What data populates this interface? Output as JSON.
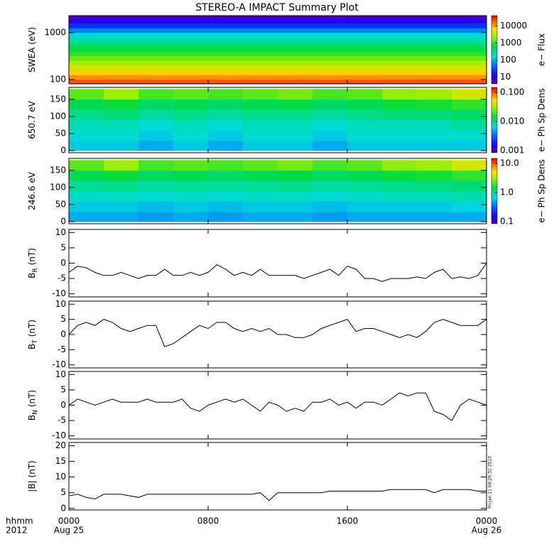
{
  "title": "STEREO-A IMPACT Summary Plot",
  "timestamp": "Fri Jan 11 08:26:32 2013",
  "chart_data": [
    {
      "type": "heatmap",
      "y_label": "SWEA (eV)",
      "colorbar_label": "e− Flux",
      "colormap": "rainbow",
      "ylog": true,
      "ylim": [
        81,
        2300
      ],
      "yticks": [
        100,
        1000
      ],
      "x_edges": [
        0,
        24
      ],
      "y_edges": [
        81,
        100,
        125,
        160,
        200,
        250,
        320,
        400,
        500,
        630,
        800,
        1000,
        1250,
        1600,
        2000,
        2300
      ],
      "values": [
        [
          20000
        ],
        [
          12000
        ],
        [
          7000
        ],
        [
          4000
        ],
        [
          2500
        ],
        [
          1500
        ],
        [
          900
        ],
        [
          600
        ],
        [
          400
        ],
        [
          250
        ],
        [
          150
        ],
        [
          60
        ],
        [
          20
        ],
        [
          10
        ],
        [
          5
        ]
      ],
      "zlim": [
        4,
        40000
      ],
      "zlog": true,
      "zticks": [
        10,
        100,
        1000,
        10000
      ]
    },
    {
      "type": "heatmap",
      "y_label": "650.7 eV",
      "colorbar_label": "e− Ph Sp Dens",
      "colormap": "rainbow",
      "ylim": [
        -6,
        185
      ],
      "yticks": [
        0,
        50,
        100,
        150
      ],
      "x_edges": [
        0,
        2,
        4,
        6,
        8,
        10,
        12,
        14,
        16,
        18,
        20,
        22,
        24
      ],
      "y_edges": [
        0,
        30,
        60,
        90,
        120,
        150,
        180
      ],
      "values": [
        [
          0.006,
          0.006,
          0.005,
          0.006,
          0.005,
          0.006,
          0.006,
          0.005,
          0.006,
          0.006,
          0.006,
          0.006
        ],
        [
          0.007,
          0.007,
          0.006,
          0.007,
          0.006,
          0.007,
          0.007,
          0.006,
          0.007,
          0.007,
          0.007,
          0.007
        ],
        [
          0.008,
          0.008,
          0.007,
          0.008,
          0.007,
          0.008,
          0.008,
          0.007,
          0.008,
          0.008,
          0.008,
          0.009
        ],
        [
          0.01,
          0.011,
          0.009,
          0.01,
          0.009,
          0.01,
          0.01,
          0.009,
          0.01,
          0.011,
          0.011,
          0.012
        ],
        [
          0.013,
          0.015,
          0.012,
          0.013,
          0.012,
          0.013,
          0.014,
          0.012,
          0.013,
          0.015,
          0.016,
          0.018
        ],
        [
          0.022,
          0.03,
          0.02,
          0.022,
          0.02,
          0.022,
          0.025,
          0.02,
          0.022,
          0.028,
          0.03,
          0.04
        ]
      ],
      "zlim": [
        0.00085,
        0.147
      ],
      "zlog": true,
      "zticks": [
        {
          "value": 0.001,
          "label": "0.001"
        },
        {
          "value": 0.01,
          "label": "0.010"
        },
        {
          "value": 0.1,
          "label": "0.100"
        }
      ]
    },
    {
      "type": "heatmap",
      "y_label": "246.6 eV",
      "colorbar_label": "e− Ph Sp Dens",
      "colormap": "rainbow",
      "ylim": [
        -6,
        185
      ],
      "yticks": [
        0,
        50,
        100,
        150
      ],
      "x_edges": [
        0,
        2,
        4,
        6,
        8,
        10,
        12,
        14,
        16,
        18,
        20,
        22,
        24
      ],
      "y_edges": [
        0,
        30,
        60,
        90,
        120,
        150,
        180
      ],
      "values": [
        [
          0.5,
          0.5,
          0.45,
          0.5,
          0.45,
          0.5,
          0.5,
          0.45,
          0.5,
          0.5,
          0.5,
          0.5
        ],
        [
          0.6,
          0.6,
          0.55,
          0.6,
          0.55,
          0.6,
          0.6,
          0.55,
          0.6,
          0.6,
          0.6,
          0.65
        ],
        [
          0.75,
          0.75,
          0.7,
          0.75,
          0.7,
          0.75,
          0.75,
          0.7,
          0.75,
          0.8,
          0.8,
          0.85
        ],
        [
          0.95,
          1.0,
          0.9,
          0.95,
          0.9,
          0.95,
          1.0,
          0.9,
          0.95,
          1.0,
          1.05,
          1.1
        ],
        [
          1.3,
          1.5,
          1.2,
          1.3,
          1.2,
          1.3,
          1.4,
          1.2,
          1.3,
          1.5,
          1.6,
          1.8
        ],
        [
          2.2,
          3.0,
          2.0,
          2.2,
          2.0,
          2.2,
          2.5,
          2.0,
          2.2,
          2.8,
          3.0,
          4.0
        ]
      ],
      "zlim": [
        0.085,
        14.7
      ],
      "zlog": true,
      "zticks": [
        0.1,
        {
          "value": 1,
          "label": "1.0"
        },
        {
          "value": 10,
          "label": "10.0"
        }
      ]
    },
    {
      "type": "line",
      "y_label": "B",
      "y_label_sub": "R",
      "y_label_unit": "(nT)",
      "color": "#000000",
      "ylim": [
        -11,
        11
      ],
      "yticks": [
        -10,
        -5,
        0,
        5,
        10
      ],
      "xlim": [
        0,
        24
      ],
      "x": [
        0,
        0.5,
        1,
        1.5,
        2,
        2.5,
        3,
        3.5,
        4,
        4.5,
        5,
        5.5,
        6,
        6.5,
        7,
        7.5,
        8,
        8.5,
        9,
        9.5,
        10,
        10.5,
        11,
        11.5,
        12,
        12.5,
        13,
        13.5,
        14,
        14.5,
        15,
        15.5,
        16,
        16.5,
        17,
        17.5,
        18,
        18.5,
        19,
        19.5,
        20,
        20.5,
        21,
        21.5,
        22,
        22.5,
        23,
        23.5,
        24
      ],
      "values": [
        -3,
        -1,
        -1.5,
        -3,
        -4,
        -4,
        -3,
        -4,
        -5,
        -4,
        -4,
        -2,
        -4,
        -4,
        -3,
        -4,
        -3,
        -0.5,
        -2,
        -4,
        -3,
        -4,
        -2,
        -4,
        -4,
        -4,
        -4,
        -5,
        -4,
        -3,
        -2,
        -4,
        -1,
        -2,
        -5,
        -5,
        -6,
        -5,
        -5,
        -5,
        -4.5,
        -5,
        -3,
        -2,
        -5,
        -4.5,
        -5,
        -4,
        0
      ]
    },
    {
      "type": "line",
      "y_label": "B",
      "y_label_sub": "T",
      "y_label_unit": "(nT)",
      "color": "#000000",
      "ylim": [
        -11,
        11
      ],
      "yticks": [
        -10,
        -5,
        0,
        5,
        10
      ],
      "xlim": [
        0,
        24
      ],
      "x": [
        0,
        0.5,
        1,
        1.5,
        2,
        2.5,
        3,
        3.5,
        4,
        4.5,
        5,
        5.5,
        6,
        6.5,
        7,
        7.5,
        8,
        8.5,
        9,
        9.5,
        10,
        10.5,
        11,
        11.5,
        12,
        12.5,
        13,
        13.5,
        14,
        14.5,
        15,
        15.5,
        16,
        16.5,
        17,
        17.5,
        18,
        18.5,
        19,
        19.5,
        20,
        20.5,
        21,
        21.5,
        22,
        22.5,
        23,
        23.5,
        24
      ],
      "values": [
        0,
        3,
        4,
        3,
        5,
        4,
        2,
        1,
        2,
        3,
        3,
        -4,
        -3,
        -1,
        1,
        3,
        2,
        4,
        4,
        2,
        1,
        2,
        1,
        2,
        0,
        0,
        -1,
        -1,
        0,
        2,
        3,
        4,
        5,
        1,
        2,
        2,
        1,
        0,
        -1,
        0,
        -1,
        1,
        4,
        5,
        4,
        3,
        3,
        3,
        5
      ]
    },
    {
      "type": "line",
      "y_label": "B",
      "y_label_sub": "N",
      "y_label_unit": "(nT)",
      "color": "#000000",
      "ylim": [
        -11,
        11
      ],
      "yticks": [
        -10,
        -5,
        0,
        5,
        10
      ],
      "xlim": [
        0,
        24
      ],
      "x": [
        0,
        0.5,
        1,
        1.5,
        2,
        2.5,
        3,
        3.5,
        4,
        4.5,
        5,
        5.5,
        6,
        6.5,
        7,
        7.5,
        8,
        8.5,
        9,
        9.5,
        10,
        10.5,
        11,
        11.5,
        12,
        12.5,
        13,
        13.5,
        14,
        14.5,
        15,
        15.5,
        16,
        16.5,
        17,
        17.5,
        18,
        18.5,
        19,
        19.5,
        20,
        20.5,
        21,
        21.5,
        22,
        22.5,
        23,
        23.5,
        24
      ],
      "values": [
        0,
        2,
        1,
        0,
        1,
        2,
        1,
        1,
        1,
        2,
        1,
        1,
        1,
        2,
        -1,
        -2,
        0,
        1,
        2,
        1,
        2,
        0,
        -2,
        1,
        0,
        -2,
        -1,
        -2,
        1,
        1,
        2,
        0,
        1,
        -1,
        1,
        1,
        0,
        2,
        4,
        3,
        4,
        4,
        -2,
        -3,
        -5,
        0,
        2,
        1,
        0
      ]
    },
    {
      "type": "line",
      "y_label": "|B| (nT)",
      "color": "#000000",
      "ylim": [
        -0.5,
        21
      ],
      "yticks": [
        0,
        5,
        10,
        15,
        20
      ],
      "xlim": [
        0,
        24
      ],
      "x_label": "hhmm",
      "x_sublabel": "2012",
      "xticks": [
        {
          "value": 0,
          "label": "0000"
        },
        {
          "value": 8,
          "label": "0800"
        },
        {
          "value": 16,
          "label": "1600"
        },
        {
          "value": 24,
          "label": "0000"
        }
      ],
      "xtick_sublabels": [
        "Aug 25",
        null,
        null,
        "Aug 26"
      ],
      "x": [
        0,
        0.5,
        1,
        1.5,
        2,
        2.5,
        3,
        3.5,
        4,
        4.5,
        5,
        5.5,
        6,
        6.5,
        7,
        7.5,
        8,
        8.5,
        9,
        9.5,
        10,
        10.5,
        11,
        11.5,
        12,
        12.5,
        13,
        13.5,
        14,
        14.5,
        15,
        15.5,
        16,
        16.5,
        17,
        17.5,
        18,
        18.5,
        19,
        19.5,
        20,
        20.5,
        21,
        21.5,
        22,
        22.5,
        23,
        23.5,
        24
      ],
      "values": [
        4,
        4.5,
        3.5,
        3,
        4.5,
        4.5,
        4.5,
        4,
        3.5,
        4.5,
        4.5,
        4.5,
        4.5,
        4.5,
        4.5,
        4.5,
        4.5,
        4.5,
        4.5,
        4.5,
        4.5,
        4.5,
        5,
        2.5,
        5,
        5,
        5,
        5,
        5,
        5,
        5.5,
        5.5,
        5.5,
        5.5,
        5.5,
        5.5,
        5.5,
        6,
        6,
        6,
        6,
        6,
        5,
        6,
        6,
        6,
        6,
        5.5,
        5.5
      ]
    }
  ]
}
